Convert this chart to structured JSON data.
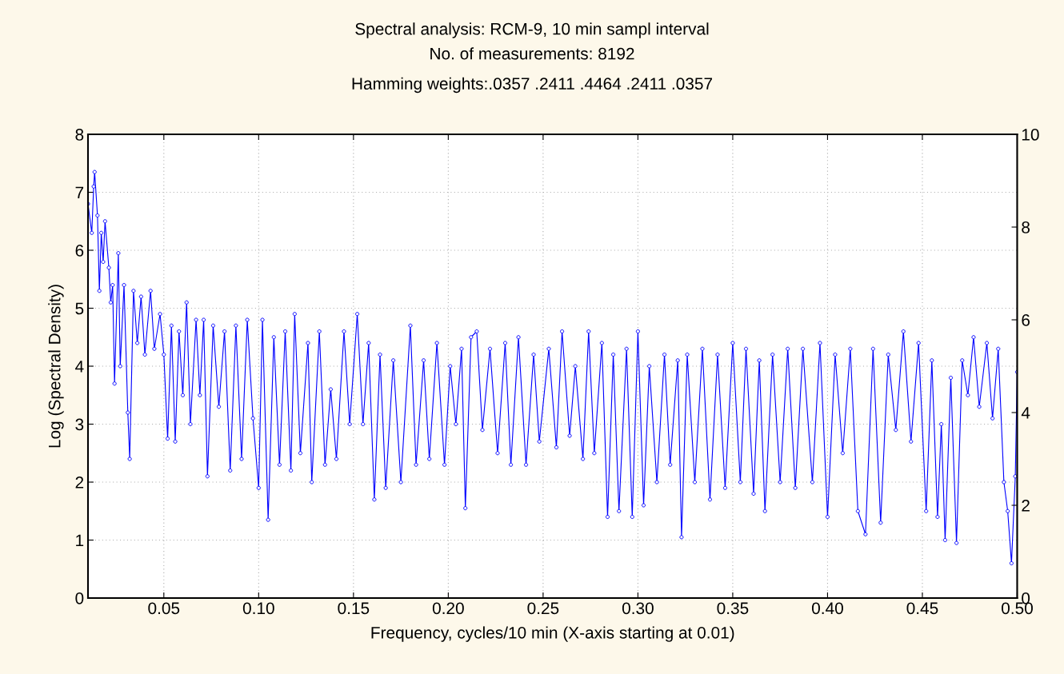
{
  "chart_data": {
    "type": "line",
    "title": "Spectral analysis: RCM-9, 10 min sampl interval",
    "subtitle": "No. of measurements: 8192\nHamming weights:.0357 .2411 .4464 .2411 .0357",
    "xlabel": "Frequency, cycles/10 min (X-axis starting at 0.01)",
    "ylabel": "Log (Spectral Density)",
    "xlim": [
      0.01,
      0.5
    ],
    "xticks": [
      0.05,
      {
        "value": 0.1,
        "label": "0.10"
      },
      0.15,
      {
        "value": 0.2,
        "label": "0.20"
      },
      0.25,
      {
        "value": 0.3,
        "label": "0.30"
      },
      0.35,
      {
        "value": 0.4,
        "label": "0.40"
      },
      0.45,
      {
        "value": 0.5,
        "label": "0.50"
      }
    ],
    "ylim": [
      0,
      8
    ],
    "yticks": [
      0,
      1,
      2,
      3,
      4,
      5,
      6,
      7,
      8
    ],
    "y2lim": [
      0,
      10
    ],
    "y2ticks": [
      0,
      2,
      4,
      6,
      8,
      10
    ],
    "grid": true,
    "marker": "circle",
    "line_style": "solid",
    "series": [
      {
        "color": "#0000ff",
        "x": [
          0.01,
          0.012,
          0.013,
          0.0135,
          0.015,
          0.016,
          0.017,
          0.018,
          0.019,
          0.021,
          0.022,
          0.023,
          0.024,
          0.026,
          0.027,
          0.029,
          0.031,
          0.032,
          0.034,
          0.036,
          0.038,
          0.04,
          0.043,
          0.045,
          0.048,
          0.05,
          0.052,
          0.054,
          0.056,
          0.058,
          0.06,
          0.062,
          0.064,
          0.067,
          0.069,
          0.071,
          0.073,
          0.076,
          0.079,
          0.082,
          0.085,
          0.088,
          0.091,
          0.094,
          0.097,
          0.1,
          0.102,
          0.105,
          0.108,
          0.111,
          0.114,
          0.117,
          0.119,
          0.122,
          0.126,
          0.128,
          0.132,
          0.135,
          0.138,
          0.141,
          0.145,
          0.148,
          0.152,
          0.155,
          0.158,
          0.161,
          0.164,
          0.167,
          0.171,
          0.175,
          0.18,
          0.183,
          0.187,
          0.19,
          0.194,
          0.198,
          0.201,
          0.204,
          0.207,
          0.209,
          0.212,
          0.215,
          0.218,
          0.222,
          0.226,
          0.23,
          0.233,
          0.237,
          0.241,
          0.245,
          0.248,
          0.253,
          0.257,
          0.26,
          0.264,
          0.267,
          0.271,
          0.274,
          0.277,
          0.281,
          0.284,
          0.287,
          0.29,
          0.294,
          0.297,
          0.3,
          0.303,
          0.306,
          0.31,
          0.314,
          0.317,
          0.321,
          0.323,
          0.326,
          0.33,
          0.334,
          0.338,
          0.342,
          0.346,
          0.35,
          0.354,
          0.357,
          0.361,
          0.364,
          0.367,
          0.371,
          0.375,
          0.379,
          0.383,
          0.387,
          0.392,
          0.396,
          0.4,
          0.404,
          0.408,
          0.412,
          0.416,
          0.42,
          0.424,
          0.428,
          0.432,
          0.436,
          0.44,
          0.444,
          0.448,
          0.452,
          0.455,
          0.458,
          0.46,
          0.462,
          0.465,
          0.468,
          0.471,
          0.474,
          0.477,
          0.48,
          0.484,
          0.487,
          0.49,
          0.493,
          0.495,
          0.497,
          0.499,
          0.5
        ],
        "values": [
          6.8,
          6.3,
          7.1,
          7.35,
          6.6,
          5.3,
          6.3,
          5.8,
          6.5,
          5.7,
          5.1,
          5.4,
          3.7,
          5.95,
          4.0,
          5.4,
          3.2,
          2.4,
          5.3,
          4.4,
          5.2,
          4.2,
          5.3,
          4.3,
          4.9,
          4.2,
          2.75,
          4.7,
          2.7,
          4.6,
          3.5,
          5.1,
          3.0,
          4.8,
          3.5,
          4.8,
          2.1,
          4.7,
          3.3,
          4.6,
          2.2,
          4.7,
          2.4,
          4.8,
          3.1,
          1.9,
          4.8,
          1.35,
          4.5,
          2.3,
          4.6,
          2.2,
          4.9,
          2.5,
          4.4,
          2.0,
          4.6,
          2.3,
          3.6,
          2.4,
          4.6,
          3.0,
          4.9,
          3.0,
          4.4,
          1.7,
          4.2,
          1.9,
          4.1,
          2.0,
          4.7,
          2.3,
          4.1,
          2.4,
          4.4,
          2.3,
          4.0,
          3.0,
          4.3,
          1.55,
          4.5,
          4.6,
          2.9,
          4.3,
          2.5,
          4.4,
          2.3,
          4.5,
          2.3,
          4.2,
          2.7,
          4.3,
          2.6,
          4.6,
          2.8,
          4.0,
          2.4,
          4.6,
          2.5,
          4.4,
          1.4,
          4.2,
          1.5,
          4.3,
          1.4,
          4.6,
          1.6,
          4.0,
          2.0,
          4.2,
          2.3,
          4.1,
          1.05,
          4.2,
          2.0,
          4.3,
          1.7,
          4.2,
          1.9,
          4.4,
          2.0,
          4.3,
          1.8,
          4.1,
          1.5,
          4.2,
          2.0,
          4.3,
          1.9,
          4.3,
          2.0,
          4.4,
          1.4,
          4.2,
          2.5,
          4.3,
          1.5,
          1.1,
          4.3,
          1.3,
          4.2,
          2.9,
          4.6,
          2.7,
          4.4,
          1.5,
          4.1,
          1.4,
          3.0,
          1.0,
          3.8,
          0.95,
          4.1,
          3.5,
          4.5,
          3.3,
          4.4,
          3.1,
          4.3,
          2.0,
          1.5,
          0.6,
          2.1,
          3.9
        ]
      }
    ]
  }
}
